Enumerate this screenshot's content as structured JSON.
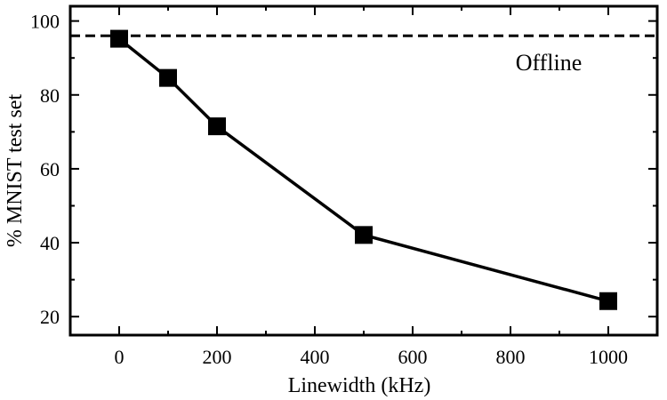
{
  "chart_data": {
    "type": "line",
    "xlabel": "Linewidth (kHz)",
    "ylabel": "% MNIST test set",
    "xlim": [
      -100,
      1100
    ],
    "ylim": [
      15,
      104
    ],
    "xticks": [
      0,
      200,
      400,
      600,
      800,
      1000
    ],
    "yticks": [
      20,
      40,
      60,
      80,
      100
    ],
    "x_minor_ticks": [
      100,
      300,
      500,
      700,
      900
    ],
    "y_minor_ticks": [
      30,
      50,
      70,
      90
    ],
    "grid": false,
    "series": [
      {
        "marker": "square",
        "color": "#000000",
        "x": [
          0,
          100,
          200,
          500,
          1000
        ],
        "y": [
          95.2,
          84.6,
          71.5,
          42.1,
          24.2
        ]
      }
    ],
    "reference_line": {
      "y": 96,
      "style": "dashed",
      "label": "Offline"
    }
  }
}
